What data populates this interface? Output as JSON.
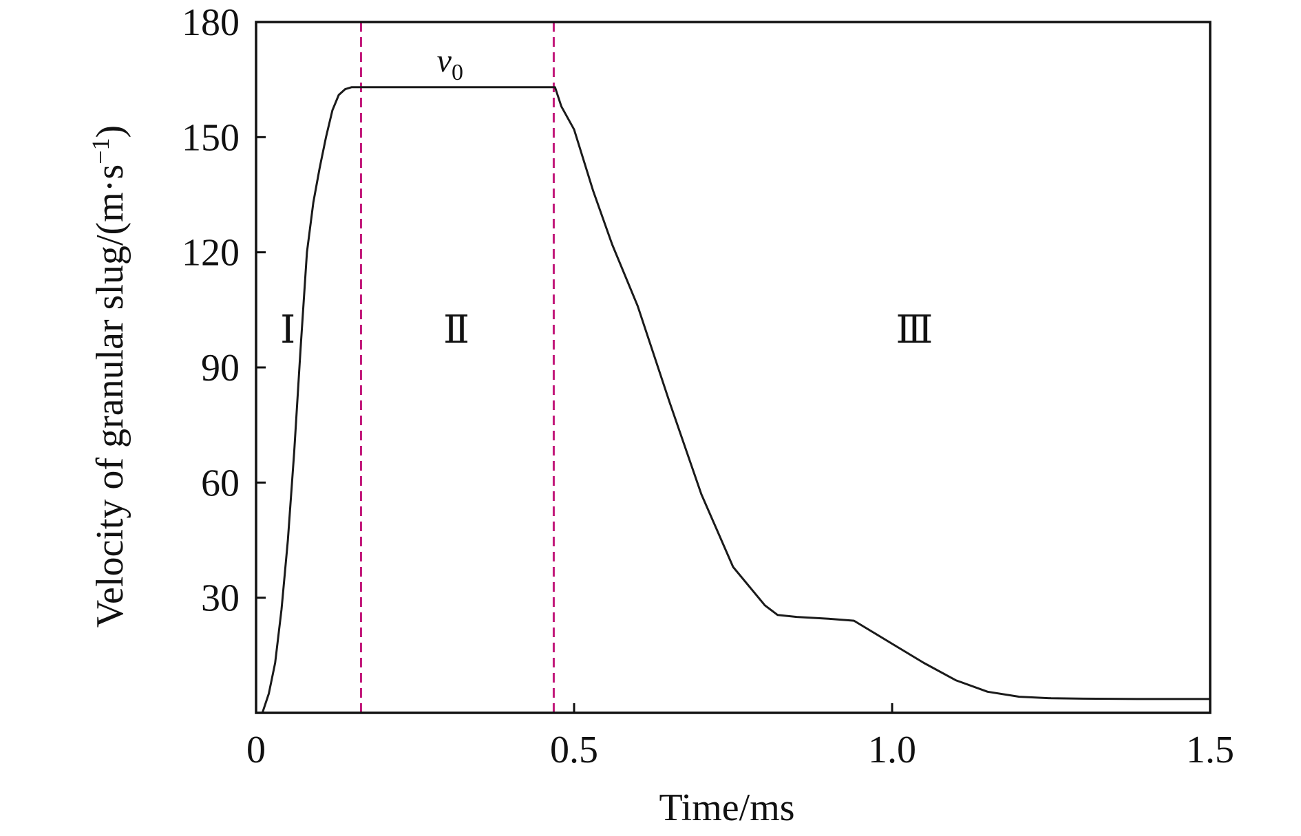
{
  "chart_data": {
    "type": "line",
    "title": "",
    "xlabel": "Time/ms",
    "ylabel": "Velocity of granular slug/(m·s",
    "ylabel_sup": "−1",
    "ylabel_close": ")",
    "xlim": [
      0,
      1.5
    ],
    "ylim": [
      0,
      180
    ],
    "xticks": [
      0,
      0.5,
      1.0,
      1.5
    ],
    "xtick_labels": [
      "0",
      "0.5",
      "1.0",
      "1.5"
    ],
    "yticks": [
      30,
      60,
      90,
      120,
      150,
      180
    ],
    "ytick_labels": [
      "30",
      "60",
      "90",
      "120",
      "150",
      "180"
    ],
    "grid": false,
    "legend": "none",
    "colors": {
      "series": "#1a1a1a",
      "divider": "#c2187a",
      "axis": "#111111"
    },
    "series": [
      {
        "x": [
          0.01,
          0.02,
          0.03,
          0.04,
          0.05,
          0.06,
          0.07,
          0.08,
          0.09,
          0.1,
          0.11,
          0.12,
          0.13,
          0.14,
          0.15,
          0.16,
          0.165,
          0.17,
          0.2,
          0.25,
          0.3,
          0.35,
          0.4,
          0.45,
          0.47,
          0.48,
          0.5,
          0.53,
          0.56,
          0.6,
          0.65,
          0.7,
          0.75,
          0.8,
          0.82,
          0.85,
          0.9,
          0.94,
          0.97,
          1.0,
          1.05,
          1.1,
          1.15,
          1.2,
          1.25,
          1.3,
          1.4,
          1.5
        ],
        "values": [
          0,
          5,
          13,
          27,
          45,
          68,
          95,
          120,
          133,
          142,
          150,
          157,
          161,
          162.5,
          163,
          163,
          163,
          163,
          163,
          163,
          163,
          163,
          163,
          163,
          163,
          158,
          152,
          136,
          122,
          106,
          81,
          57,
          38,
          28,
          25.5,
          25,
          24.5,
          24,
          21,
          18,
          13,
          8.5,
          5.5,
          4.2,
          3.8,
          3.7,
          3.6,
          3.6
        ]
      }
    ],
    "dividers": [
      0.165,
      0.468
    ],
    "region_labels": [
      {
        "text": "Ⅰ",
        "x": 0.05,
        "y": 100
      },
      {
        "text": "Ⅱ",
        "x": 0.315,
        "y": 100
      },
      {
        "text": "Ⅲ",
        "x": 1.035,
        "y": 100
      }
    ],
    "annotation": {
      "text": "v",
      "sub": "0",
      "x": 0.305,
      "y": 170
    }
  }
}
